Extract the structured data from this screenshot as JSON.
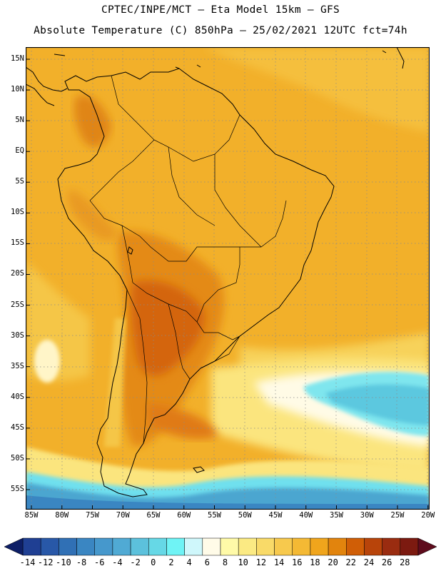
{
  "header": {
    "line1": "CPTEC/INPE/MCT –  Eta Model 15km – GFS",
    "line2": "Absolute Temperature (C) 850hPa – 25/02/2021 12UTC fct=74h"
  },
  "map": {
    "lat_labels": [
      "15N",
      "10N",
      "5N",
      "EQ",
      "5S",
      "10S",
      "15S",
      "20S",
      "25S",
      "30S",
      "35S",
      "40S",
      "45S",
      "50S",
      "55S"
    ],
    "lon_labels": [
      "85W",
      "80W",
      "75W",
      "70W",
      "65W",
      "60W",
      "55W",
      "50W",
      "45W",
      "40W",
      "35W",
      "30W",
      "25W",
      "20W"
    ]
  },
  "colorbar": {
    "labels": [
      "-14",
      "-12",
      "-10",
      "-8",
      "-6",
      "-4",
      "-2",
      "0",
      "2",
      "4",
      "6",
      "8",
      "10",
      "12",
      "14",
      "16",
      "18",
      "20",
      "22",
      "24",
      "26",
      "28"
    ],
    "colors": [
      "#1f3f93",
      "#2858a8",
      "#3070b5",
      "#3a86c2",
      "#4698cc",
      "#50aad4",
      "#5cc1dc",
      "#66d8e6",
      "#6ff3f5",
      "#cff7fb",
      "#fffbe8",
      "#fffaa8",
      "#fbea83",
      "#f9da68",
      "#f7c94d",
      "#f4b934",
      "#f0a51c",
      "#e2840d",
      "#d05e06",
      "#b8440a",
      "#9a2c10",
      "#7c1a10"
    ]
  }
}
